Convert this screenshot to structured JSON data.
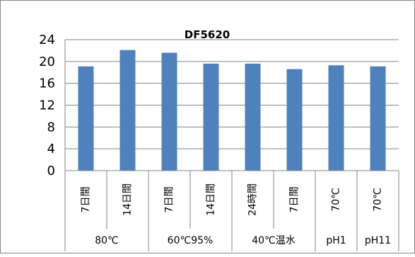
{
  "chart_data": {
    "type": "bar",
    "title": "DF5620",
    "xlabel": "",
    "ylabel": "",
    "ylim": [
      0,
      24
    ],
    "yticks": [
      "0",
      "4",
      "8",
      "12",
      "16",
      "20",
      "24"
    ],
    "grid": true,
    "legend": "none",
    "bar_color": "#4f81bd",
    "grid_color": "#868686",
    "categories": [
      "7日間",
      "14日間",
      "7日間",
      "14日間",
      "24時間",
      "7日間",
      "70℃",
      "70℃"
    ],
    "groups": [
      {
        "label": "80℃",
        "span": 2
      },
      {
        "label": "60℃95%",
        "span": 2
      },
      {
        "label": "40℃温水",
        "span": 2
      },
      {
        "label": "pH1",
        "span": 1
      },
      {
        "label": "pH11",
        "span": 1
      }
    ],
    "values": [
      19.1,
      22.1,
      21.6,
      19.6,
      19.6,
      18.6,
      19.3,
      19.1
    ]
  }
}
